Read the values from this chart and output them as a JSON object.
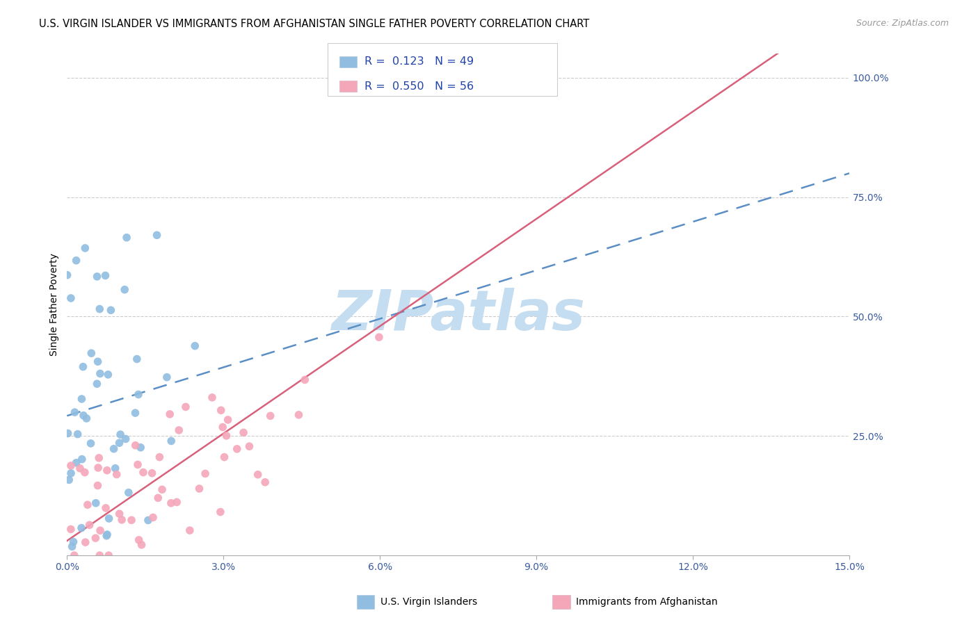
{
  "title": "U.S. VIRGIN ISLANDER VS IMMIGRANTS FROM AFGHANISTAN SINGLE FATHER POVERTY CORRELATION CHART",
  "source": "Source: ZipAtlas.com",
  "ylabel": "Single Father Poverty",
  "xlim": [
    0.0,
    0.15
  ],
  "ylim": [
    0.0,
    1.05
  ],
  "xtick_positions": [
    0.0,
    0.03,
    0.06,
    0.09,
    0.12,
    0.15
  ],
  "xtick_labels": [
    "0.0%",
    "3.0%",
    "6.0%",
    "9.0%",
    "12.0%",
    "15.0%"
  ],
  "ytick_vals_right": [
    1.0,
    0.75,
    0.5,
    0.25
  ],
  "ytick_labels_right": [
    "100.0%",
    "75.0%",
    "50.0%",
    "25.0%"
  ],
  "blue_R": 0.123,
  "blue_N": 49,
  "pink_R": 0.55,
  "pink_N": 56,
  "blue_color": "#90bde0",
  "pink_color": "#f4a7b9",
  "blue_line_color": "#5b8ec4",
  "pink_line_color": "#d9607a",
  "watermark": "ZIPatlas",
  "watermark_color": "#c5ddf0",
  "legend_label_blue": "U.S. Virgin Islanders",
  "legend_label_pink": "Immigrants from Afghanistan",
  "title_fontsize": 10.5,
  "tick_fontsize": 10,
  "ylabel_fontsize": 10,
  "source_fontsize": 9
}
